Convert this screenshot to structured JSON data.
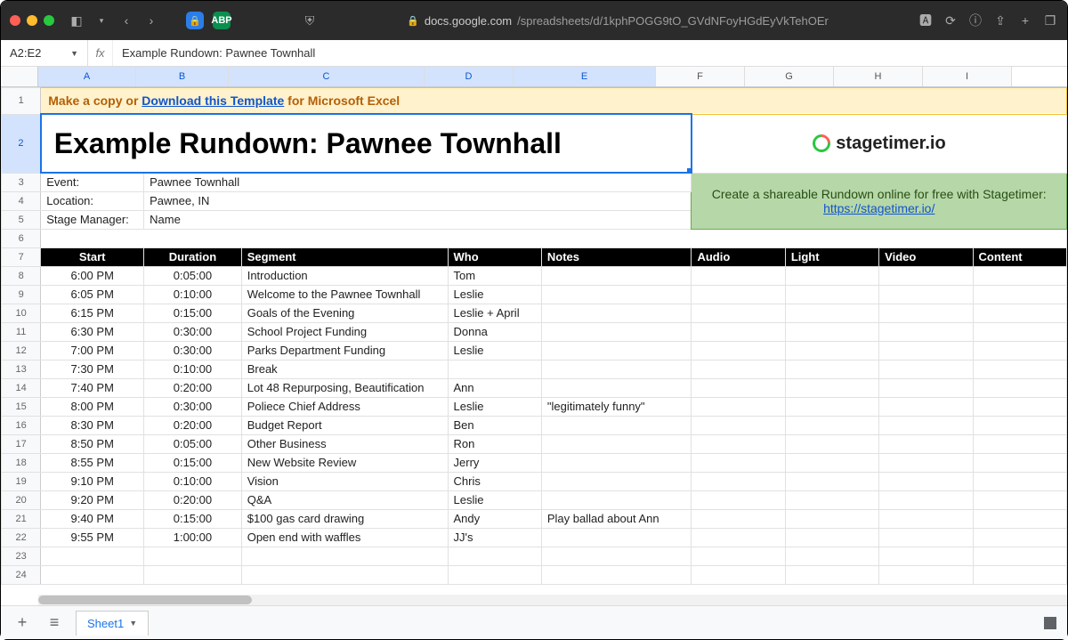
{
  "browser": {
    "url_host": "docs.google.com",
    "url_path": "/spreadsheets/d/1kphPOGG9tO_GVdNFoyHGdEyVkTehOEr"
  },
  "namebox": "A2:E2",
  "formula": "Example Rundown: Pawnee Townhall",
  "columns": [
    "A",
    "B",
    "C",
    "D",
    "E",
    "F",
    "G",
    "H",
    "I"
  ],
  "banner": {
    "prefix": "Make a copy or ",
    "link": "Download this Template",
    "suffix": " for Microsoft Excel"
  },
  "title": "Example Rundown: Pawnee Townhall",
  "logo_text": "stagetimer.io",
  "meta": [
    {
      "label": "Event:",
      "value": "Pawnee Townhall"
    },
    {
      "label": "Location:",
      "value": "Pawnee, IN"
    },
    {
      "label": "Stage Manager:",
      "value": "Name"
    }
  ],
  "promo": {
    "line1": "Create a shareable Rundown online for free with Stagetimer:",
    "link": "https://stagetimer.io/"
  },
  "sched_headers": [
    "Start",
    "Duration",
    "Segment",
    "Who",
    "Notes",
    "Audio",
    "Light",
    "Video",
    "Content"
  ],
  "rows": [
    {
      "n": 8,
      "start": "6:00 PM",
      "dur": "0:05:00",
      "seg": "Introduction",
      "who": "Tom",
      "notes": ""
    },
    {
      "n": 9,
      "start": "6:05 PM",
      "dur": "0:10:00",
      "seg": "Welcome to the Pawnee Townhall",
      "who": "Leslie",
      "notes": ""
    },
    {
      "n": 10,
      "start": "6:15 PM",
      "dur": "0:15:00",
      "seg": "Goals of the Evening",
      "who": "Leslie + April",
      "notes": ""
    },
    {
      "n": 11,
      "start": "6:30 PM",
      "dur": "0:30:00",
      "seg": "School Project Funding",
      "who": "Donna",
      "notes": ""
    },
    {
      "n": 12,
      "start": "7:00 PM",
      "dur": "0:30:00",
      "seg": "Parks Department Funding",
      "who": "Leslie",
      "notes": ""
    },
    {
      "n": 13,
      "start": "7:30 PM",
      "dur": "0:10:00",
      "seg": "Break",
      "who": "",
      "notes": ""
    },
    {
      "n": 14,
      "start": "7:40 PM",
      "dur": "0:20:00",
      "seg": "Lot 48 Repurposing, Beautification",
      "who": "Ann",
      "notes": ""
    },
    {
      "n": 15,
      "start": "8:00 PM",
      "dur": "0:30:00",
      "seg": "Poliece Chief Address",
      "who": "Leslie",
      "notes": "\"legitimately funny\""
    },
    {
      "n": 16,
      "start": "8:30 PM",
      "dur": "0:20:00",
      "seg": "Budget Report",
      "who": "Ben",
      "notes": ""
    },
    {
      "n": 17,
      "start": "8:50 PM",
      "dur": "0:05:00",
      "seg": "Other Business",
      "who": "Ron",
      "notes": ""
    },
    {
      "n": 18,
      "start": "8:55 PM",
      "dur": "0:15:00",
      "seg": "New Website Review",
      "who": "Jerry",
      "notes": ""
    },
    {
      "n": 19,
      "start": "9:10 PM",
      "dur": "0:10:00",
      "seg": "Vision",
      "who": "Chris",
      "notes": ""
    },
    {
      "n": 20,
      "start": "9:20 PM",
      "dur": "0:20:00",
      "seg": "Q&A",
      "who": "Leslie",
      "notes": ""
    },
    {
      "n": 21,
      "start": "9:40 PM",
      "dur": "0:15:00",
      "seg": "$100 gas card drawing",
      "who": "Andy",
      "notes": "Play ballad about Ann"
    },
    {
      "n": 22,
      "start": "9:55 PM",
      "dur": "1:00:00",
      "seg": "Open end with waffles",
      "who": "JJ's",
      "notes": ""
    }
  ],
  "empty_rows": [
    23,
    24
  ],
  "sheet_tab": "Sheet1",
  "colors": {
    "banner_bg": "#fff2cc",
    "banner_border": "#f1c232",
    "banner_text": "#b45f06",
    "selection": "#1a73e8",
    "col_sel_bg": "#d3e3fd",
    "promo_bg": "#b6d7a8",
    "promo_border": "#6aa84f",
    "header_bg": "#000000",
    "header_fg": "#ffffff",
    "link": "#1155cc"
  }
}
